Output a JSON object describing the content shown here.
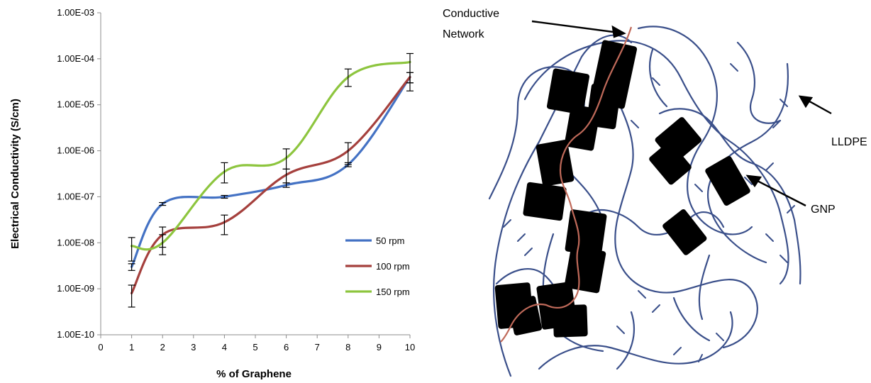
{
  "chart_data": {
    "type": "line",
    "xlabel": "% of Graphene",
    "ylabel": "Electrical Conductivity (S/cm)",
    "x_ticks": [
      "0",
      "1",
      "2",
      "3",
      "4",
      "5",
      "6",
      "7",
      "8",
      "9",
      "10"
    ],
    "xlim": [
      0,
      10
    ],
    "y_scale": "log",
    "ylim": [
      1e-10,
      0.001
    ],
    "y_ticks": [
      "1.00E-10",
      "1.00E-09",
      "1.00E-08",
      "1.00E-07",
      "1.00E-06",
      "1.00E-05",
      "1.00E-04",
      "1.00E-03"
    ],
    "grid": false,
    "legend_position": "right-center",
    "x": [
      1,
      2,
      4,
      6,
      8,
      10
    ],
    "series": [
      {
        "name": "50 rpm",
        "color": "#4472C4",
        "values": [
          3e-09,
          7e-08,
          1e-07,
          1.8e-07,
          5e-07,
          4e-05
        ],
        "err_low": [
          2.5e-09,
          6.5e-08,
          9.3e-08,
          1.6e-07,
          4.5e-07,
          3e-05
        ],
        "err_high": [
          3.5e-09,
          7.5e-08,
          1.07e-07,
          2e-07,
          5.5e-07,
          5e-05
        ]
      },
      {
        "name": "100 rpm",
        "color": "#A5403D",
        "values": [
          8e-10,
          1.5e-08,
          2.8e-08,
          3e-07,
          1e-06,
          4e-05
        ],
        "err_low": [
          4e-10,
          8e-09,
          1.5e-08,
          2e-07,
          5e-07,
          3e-05
        ],
        "err_high": [
          1.2e-09,
          2.2e-08,
          4e-08,
          4e-07,
          1.5e-06,
          5e-05
        ]
      },
      {
        "name": "150 rpm",
        "color": "#8DC53E",
        "values": [
          8.5e-09,
          1e-08,
          3.5e-07,
          7e-07,
          4e-05,
          8.5e-05
        ],
        "err_low": [
          4e-09,
          5.5e-09,
          2e-07,
          4e-07,
          2.5e-05,
          2e-05
        ],
        "err_high": [
          1.3e-08,
          1.5e-08,
          5.5e-07,
          1.1e-06,
          6e-05,
          0.00013
        ]
      }
    ]
  },
  "diagram": {
    "labels": {
      "conductive_network": [
        "Conductive",
        "Network"
      ],
      "lldpe": "LLDPE",
      "gnp": "GNP"
    },
    "colors": {
      "polymer": "#3A4F8A",
      "network": "#C06A5A",
      "platelet": "#000000"
    }
  }
}
